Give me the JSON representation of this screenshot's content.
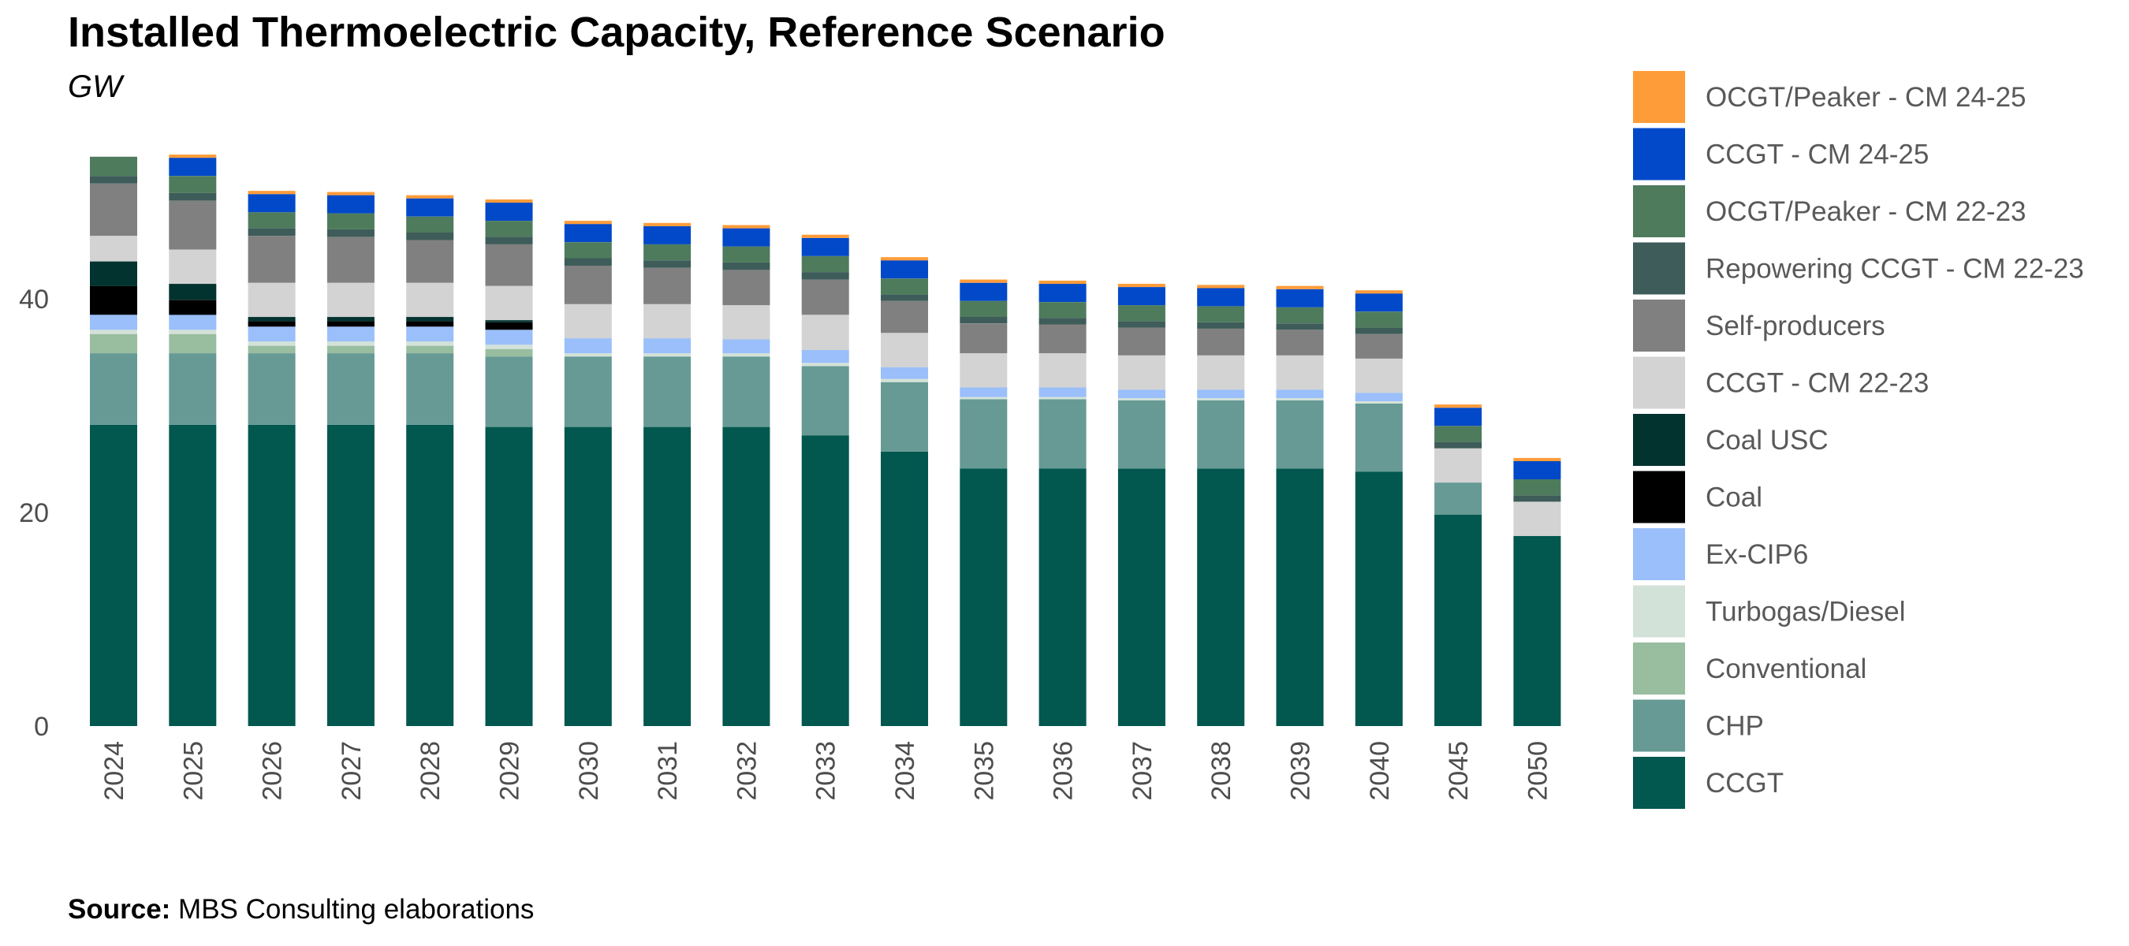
{
  "title": "Installed Thermoelectric Capacity, Reference Scenario",
  "subtitle": "GW",
  "source": {
    "label": "Source:",
    "text": "MBS Consulting elaborations"
  },
  "chart_data": {
    "type": "bar",
    "stacked": true,
    "title": "Installed Thermoelectric Capacity, Reference Scenario",
    "ylabel": "GW",
    "xlabel": "",
    "ylim": [
      0,
      54
    ],
    "yticks": [
      0,
      20,
      40
    ],
    "grid": false,
    "legend_position": "right",
    "categories": [
      "2024",
      "2025",
      "2026",
      "2027",
      "2028",
      "2029",
      "2030",
      "2031",
      "2032",
      "2033",
      "2034",
      "2035",
      "2036",
      "2037",
      "2038",
      "2039",
      "2040",
      "2045",
      "2050"
    ],
    "series": [
      {
        "name": "CCGT",
        "color": "#02574F",
        "values": [
          28.2,
          28.2,
          28.2,
          28.2,
          28.2,
          28.0,
          28.0,
          28.0,
          28.0,
          27.2,
          25.7,
          24.1,
          24.1,
          24.1,
          24.1,
          24.1,
          23.8,
          19.8,
          17.8
        ]
      },
      {
        "name": "CHP",
        "color": "#679A94",
        "values": [
          6.7,
          6.7,
          6.7,
          6.7,
          6.7,
          6.6,
          6.6,
          6.6,
          6.6,
          6.5,
          6.5,
          6.5,
          6.5,
          6.4,
          6.4,
          6.4,
          6.4,
          3.0,
          0
        ]
      },
      {
        "name": "Conventional",
        "color": "#98BD9F",
        "values": [
          1.8,
          1.8,
          0.7,
          0.7,
          0.7,
          0.7,
          0,
          0,
          0,
          0,
          0,
          0,
          0,
          0,
          0,
          0,
          0,
          0,
          0
        ]
      },
      {
        "name": "Turbogas/Diesel",
        "color": "#D3E2D8",
        "values": [
          0.4,
          0.4,
          0.4,
          0.4,
          0.4,
          0.4,
          0.3,
          0.3,
          0.3,
          0.3,
          0.3,
          0.2,
          0.2,
          0.2,
          0.2,
          0.2,
          0.2,
          0,
          0
        ]
      },
      {
        "name": "Ex-CIP6",
        "color": "#9ABFFA",
        "values": [
          1.4,
          1.4,
          1.4,
          1.4,
          1.4,
          1.4,
          1.4,
          1.4,
          1.3,
          1.2,
          1.1,
          0.9,
          0.9,
          0.8,
          0.8,
          0.8,
          0.8,
          0,
          0
        ]
      },
      {
        "name": "Coal",
        "color": "#000000",
        "values": [
          2.7,
          1.4,
          0.5,
          0.5,
          0.5,
          0.7,
          0,
          0,
          0,
          0,
          0,
          0,
          0,
          0,
          0,
          0,
          0,
          0,
          0
        ]
      },
      {
        "name": "Coal USC",
        "color": "#02332F",
        "values": [
          2.3,
          1.5,
          0.4,
          0.4,
          0.4,
          0.2,
          0,
          0,
          0,
          0,
          0,
          0,
          0,
          0,
          0,
          0,
          0,
          0,
          0
        ]
      },
      {
        "name": "CCGT - CM 22-23",
        "color": "#D3D3D3",
        "values": [
          2.4,
          3.2,
          3.2,
          3.2,
          3.2,
          3.2,
          3.2,
          3.2,
          3.2,
          3.3,
          3.2,
          3.2,
          3.2,
          3.2,
          3.2,
          3.2,
          3.2,
          3.2,
          3.2
        ]
      },
      {
        "name": "Self-producers",
        "color": "#808080",
        "values": [
          4.9,
          4.6,
          4.4,
          4.3,
          4.0,
          3.9,
          3.6,
          3.4,
          3.3,
          3.3,
          3.0,
          2.8,
          2.7,
          2.6,
          2.5,
          2.4,
          2.3,
          0,
          0
        ]
      },
      {
        "name": "Repowering CCGT - CM 22-23",
        "color": "#3E5C59",
        "values": [
          0.7,
          0.7,
          0.7,
          0.7,
          0.7,
          0.7,
          0.7,
          0.7,
          0.7,
          0.7,
          0.6,
          0.6,
          0.6,
          0.6,
          0.6,
          0.6,
          0.6,
          0.6,
          0.6
        ]
      },
      {
        "name": "OCGT/Peaker - CM 22-23",
        "color": "#4E7B5C",
        "values": [
          1.8,
          1.6,
          1.5,
          1.5,
          1.5,
          1.5,
          1.5,
          1.5,
          1.5,
          1.5,
          1.5,
          1.5,
          1.5,
          1.5,
          1.5,
          1.5,
          1.5,
          1.5,
          1.5
        ]
      },
      {
        "name": "CCGT - CM 24-25",
        "color": "#0149C9",
        "values": [
          0,
          1.7,
          1.7,
          1.7,
          1.7,
          1.7,
          1.7,
          1.7,
          1.7,
          1.7,
          1.7,
          1.7,
          1.7,
          1.7,
          1.7,
          1.7,
          1.7,
          1.7,
          1.7
        ]
      },
      {
        "name": "OCGT/Peaker - CM 24-25",
        "color": "#FF9C3A",
        "values": [
          0,
          0.3,
          0.3,
          0.3,
          0.3,
          0.3,
          0.3,
          0.3,
          0.3,
          0.3,
          0.3,
          0.3,
          0.3,
          0.3,
          0.3,
          0.3,
          0.3,
          0.3,
          0.3
        ]
      }
    ]
  }
}
